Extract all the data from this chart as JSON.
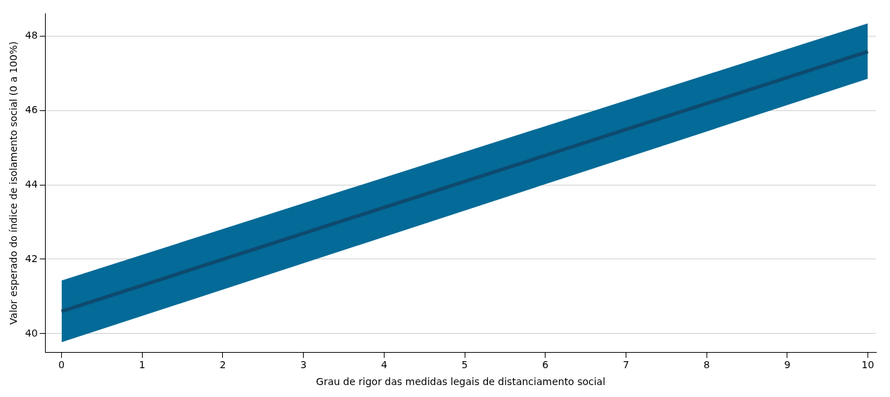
{
  "chart_data": {
    "type": "line",
    "xlabel": "Grau de rigor das medidas legais de distanciamento social",
    "ylabel": "Valor esperado do índice de isolamento social (0 a 100%)",
    "x": [
      0,
      10
    ],
    "series": [
      {
        "color": "#0e4a6e",
        "values": [
          40.6,
          47.58
        ],
        "lower": [
          39.77,
          46.85
        ],
        "upper": [
          41.43,
          48.34
        ]
      }
    ],
    "xlim": [
      -0.2,
      10.1
    ],
    "xticks": [
      0,
      1,
      2,
      3,
      4,
      5,
      6,
      7,
      8,
      9,
      10
    ],
    "ylim": [
      39.5,
      48.6
    ],
    "yticks": [
      40,
      42,
      44,
      46,
      48
    ],
    "grid": "y",
    "legend": false,
    "marker": "none",
    "line_style": "solid"
  }
}
